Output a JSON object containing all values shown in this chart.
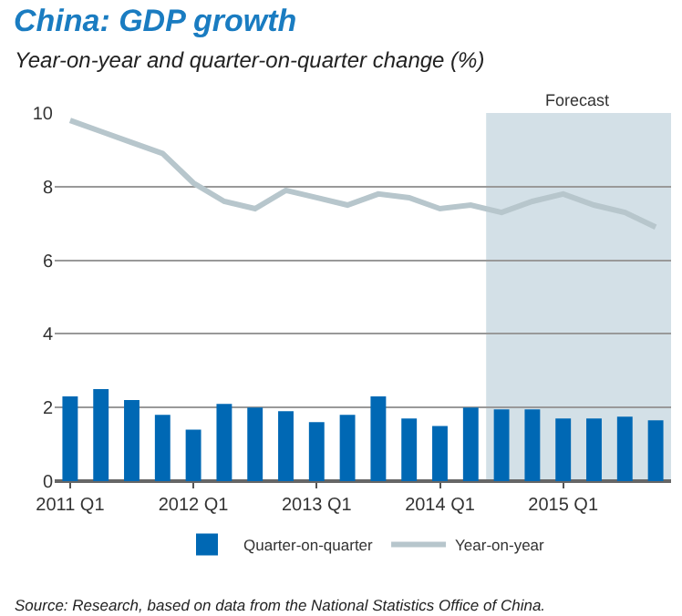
{
  "chart_data": {
    "type": "bar",
    "title": "China: GDP growth",
    "subtitle": "Year-on-year and quarter-on-quarter change (%)",
    "categories": [
      "2011 Q1",
      null,
      null,
      null,
      "2012 Q1",
      null,
      null,
      null,
      "2013 Q1",
      null,
      null,
      null,
      "2014 Q1",
      null,
      null,
      null,
      "2015 Q1",
      null,
      null,
      null
    ],
    "series": [
      {
        "name": "Quarter-on-quarter",
        "color": "#0068b4",
        "values": [
          2.3,
          2.5,
          2.2,
          1.8,
          1.4,
          2.1,
          2.0,
          1.9,
          1.6,
          1.8,
          2.3,
          1.7,
          1.5,
          2.0,
          1.95,
          1.95,
          1.7,
          1.7,
          1.75,
          1.65
        ]
      },
      {
        "name": "Year-on-year",
        "type": "line",
        "color": "#b7c6cc",
        "values": [
          9.8,
          9.5,
          9.2,
          8.9,
          8.1,
          7.6,
          7.4,
          7.9,
          7.7,
          7.5,
          7.8,
          7.7,
          7.4,
          7.5,
          7.3,
          7.6,
          7.8,
          7.5,
          7.3,
          6.9
        ]
      }
    ],
    "ylim": [
      0,
      10
    ],
    "yticks": [
      0,
      2,
      4,
      6,
      8,
      10
    ],
    "grid": "y",
    "legend": "bottom",
    "marker": "none",
    "line_style": "solid",
    "annotations": [
      "Forecast",
      "Source: Research, based on data from the National Statistics Office of China."
    ]
  }
}
